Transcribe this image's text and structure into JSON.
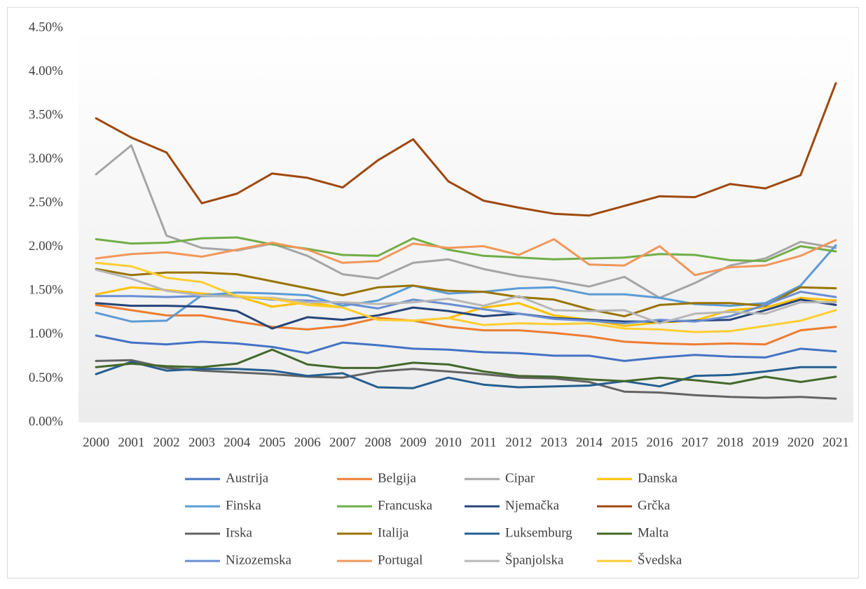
{
  "chart_data": {
    "type": "line",
    "categories": [
      "2000",
      "2001",
      "2002",
      "2003",
      "2004",
      "2005",
      "2006",
      "2007",
      "2008",
      "2009",
      "2010",
      "2011",
      "2012",
      "2013",
      "2014",
      "2015",
      "2016",
      "2017",
      "2018",
      "2019",
      "2020",
      "2021"
    ],
    "ylim": [
      0,
      4.5
    ],
    "yticks": [
      {
        "value": 0,
        "label": "0.00%"
      },
      {
        "value": 0.5,
        "label": "0.50%"
      },
      {
        "value": 1,
        "label": "1.00%"
      },
      {
        "value": 1.5,
        "label": "1.50%"
      },
      {
        "value": 2,
        "label": "2.00%"
      },
      {
        "value": 2.5,
        "label": "2.50%"
      },
      {
        "value": 3,
        "label": "3.00%"
      },
      {
        "value": 3.5,
        "label": "3.50%"
      },
      {
        "value": 4,
        "label": "4.00%"
      },
      {
        "value": 4.5,
        "label": "4.50%"
      }
    ],
    "grid": false,
    "legend": "bottom",
    "series": [
      {
        "name": "Austrija",
        "color": "#4472c4",
        "values": [
          0.99,
          0.91,
          0.89,
          0.92,
          0.9,
          0.86,
          0.79,
          0.91,
          0.88,
          0.84,
          0.83,
          0.8,
          0.79,
          0.76,
          0.76,
          0.7,
          0.74,
          0.77,
          0.75,
          0.74,
          0.84,
          0.81
        ]
      },
      {
        "name": "Belgija",
        "color": "#ed7d31",
        "values": [
          1.34,
          1.28,
          1.22,
          1.22,
          1.15,
          1.09,
          1.06,
          1.1,
          1.19,
          1.16,
          1.09,
          1.05,
          1.05,
          1.02,
          0.98,
          0.92,
          0.9,
          0.89,
          0.9,
          0.89,
          1.05,
          1.09
        ]
      },
      {
        "name": "Cipar",
        "color": "#a5a5a5",
        "values": [
          2.83,
          3.16,
          2.13,
          1.99,
          1.96,
          2.04,
          1.9,
          1.69,
          1.64,
          1.82,
          1.86,
          1.75,
          1.67,
          1.62,
          1.55,
          1.66,
          1.42,
          1.59,
          1.79,
          1.87,
          2.06,
          1.99
        ]
      },
      {
        "name": "Danska",
        "color": "#ffc000",
        "values": [
          1.46,
          1.54,
          1.51,
          1.47,
          1.44,
          1.32,
          1.37,
          1.31,
          1.17,
          1.16,
          1.19,
          1.31,
          1.36,
          1.22,
          1.17,
          1.1,
          1.14,
          1.16,
          1.28,
          1.31,
          1.42,
          1.39
        ]
      },
      {
        "name": "Finska",
        "color": "#5b9bd5",
        "values": [
          1.25,
          1.15,
          1.16,
          1.45,
          1.48,
          1.47,
          1.45,
          1.33,
          1.39,
          1.56,
          1.47,
          1.49,
          1.53,
          1.54,
          1.46,
          1.46,
          1.42,
          1.35,
          1.33,
          1.36,
          1.56,
          2.02
        ]
      },
      {
        "name": "Francuska",
        "color": "#70ad47",
        "values": [
          2.09,
          2.04,
          2.05,
          2.1,
          2.11,
          2.03,
          1.98,
          1.91,
          1.9,
          2.1,
          1.97,
          1.9,
          1.88,
          1.86,
          1.87,
          1.88,
          1.92,
          1.91,
          1.85,
          1.84,
          2.01,
          1.95
        ]
      },
      {
        "name": "Njemačka",
        "color": "#264478",
        "values": [
          1.36,
          1.33,
          1.33,
          1.32,
          1.27,
          1.07,
          1.2,
          1.17,
          1.22,
          1.31,
          1.27,
          1.21,
          1.24,
          1.19,
          1.17,
          1.15,
          1.15,
          1.16,
          1.17,
          1.28,
          1.4,
          1.34
        ]
      },
      {
        "name": "Grčka",
        "color": "#9e480e",
        "values": [
          3.47,
          3.25,
          3.08,
          2.5,
          2.61,
          2.84,
          2.79,
          2.68,
          2.99,
          3.23,
          2.75,
          2.53,
          2.45,
          2.38,
          2.36,
          2.47,
          2.58,
          2.57,
          2.72,
          2.67,
          2.82,
          3.87
        ]
      },
      {
        "name": "Irska",
        "color": "#636363",
        "values": [
          0.7,
          0.71,
          0.62,
          0.59,
          0.57,
          0.55,
          0.52,
          0.51,
          0.58,
          0.61,
          0.58,
          0.55,
          0.51,
          0.5,
          0.46,
          0.35,
          0.34,
          0.31,
          0.29,
          0.28,
          0.29,
          0.27
        ]
      },
      {
        "name": "Italija",
        "color": "#997300",
        "values": [
          1.75,
          1.68,
          1.71,
          1.71,
          1.69,
          1.61,
          1.53,
          1.45,
          1.54,
          1.56,
          1.5,
          1.49,
          1.43,
          1.4,
          1.29,
          1.21,
          1.34,
          1.36,
          1.36,
          1.33,
          1.54,
          1.53
        ]
      },
      {
        "name": "Luksemburg",
        "color": "#255e91",
        "values": [
          0.55,
          0.69,
          0.59,
          0.61,
          0.61,
          0.59,
          0.53,
          0.56,
          0.4,
          0.39,
          0.51,
          0.43,
          0.4,
          0.41,
          0.42,
          0.47,
          0.41,
          0.53,
          0.54,
          0.58,
          0.63,
          0.63
        ]
      },
      {
        "name": "Malta",
        "color": "#43682b",
        "values": [
          0.63,
          0.67,
          0.64,
          0.63,
          0.67,
          0.83,
          0.66,
          0.62,
          0.62,
          0.68,
          0.66,
          0.58,
          0.53,
          0.52,
          0.49,
          0.47,
          0.51,
          0.48,
          0.44,
          0.52,
          0.46,
          0.52
        ]
      },
      {
        "name": "Nizozemska",
        "color": "#698ed0",
        "values": [
          1.44,
          1.44,
          1.43,
          1.44,
          1.44,
          1.4,
          1.39,
          1.36,
          1.3,
          1.4,
          1.35,
          1.29,
          1.24,
          1.18,
          1.16,
          1.13,
          1.17,
          1.15,
          1.21,
          1.34,
          1.49,
          1.43
        ]
      },
      {
        "name": "Portugal",
        "color": "#f1975a",
        "values": [
          1.87,
          1.92,
          1.94,
          1.89,
          1.97,
          2.05,
          1.97,
          1.82,
          1.84,
          2.04,
          1.99,
          2.01,
          1.91,
          2.09,
          1.8,
          1.79,
          2.01,
          1.68,
          1.77,
          1.79,
          1.9,
          2.08
        ]
      },
      {
        "name": "Španjolska",
        "color": "#b7b7b7",
        "values": [
          1.74,
          1.64,
          1.5,
          1.45,
          1.43,
          1.42,
          1.37,
          1.37,
          1.35,
          1.37,
          1.41,
          1.33,
          1.44,
          1.28,
          1.27,
          1.28,
          1.13,
          1.24,
          1.26,
          1.24,
          1.37,
          1.37
        ]
      },
      {
        "name": "Švedska",
        "color": "#ffcd33",
        "values": [
          1.82,
          1.78,
          1.65,
          1.6,
          1.44,
          1.41,
          1.34,
          1.31,
          1.17,
          1.16,
          1.19,
          1.11,
          1.13,
          1.12,
          1.13,
          1.07,
          1.06,
          1.03,
          1.04,
          1.1,
          1.16,
          1.28
        ]
      }
    ]
  }
}
